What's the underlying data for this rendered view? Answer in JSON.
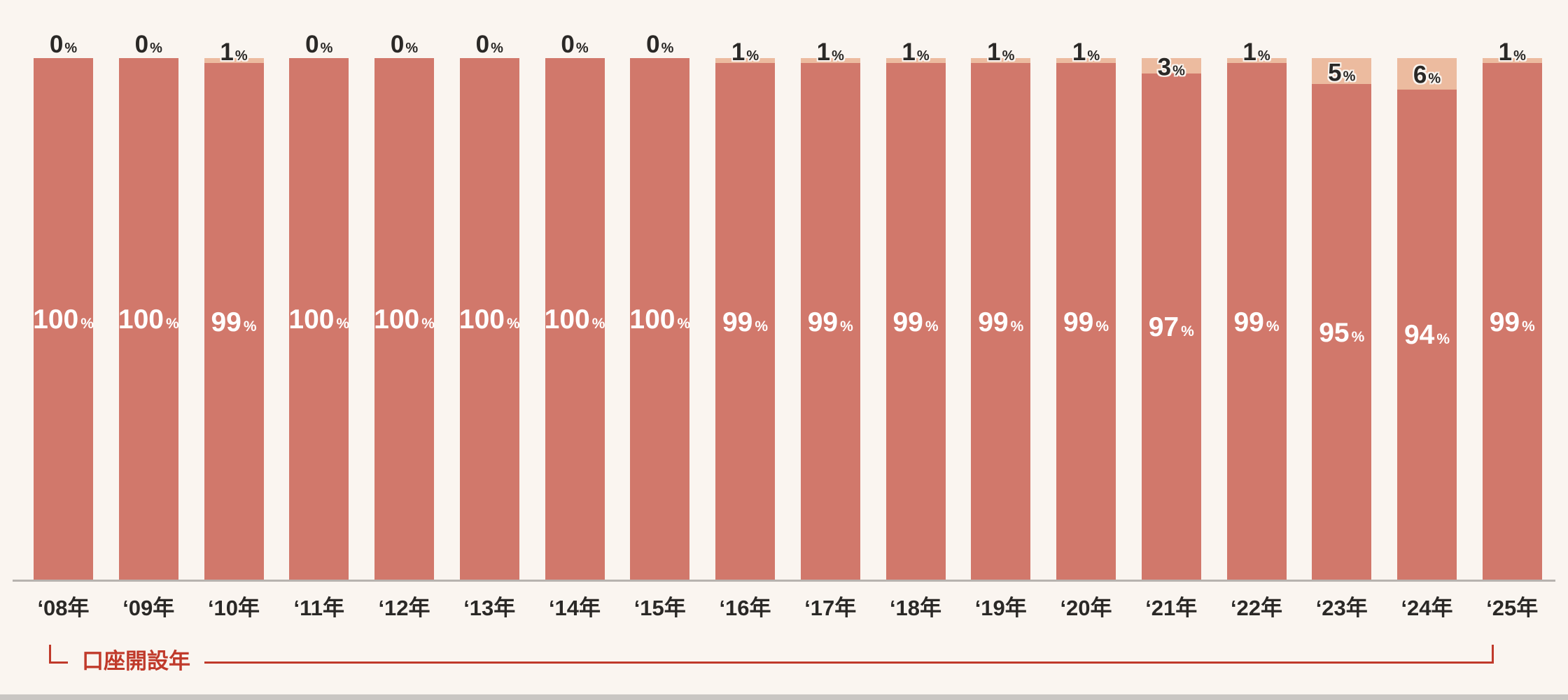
{
  "colors": {
    "background": "#faf5f0",
    "bar_bottom_segment": "#d1786b",
    "bar_top_segment": "#ecbb9f",
    "top_label_text": "#2a2826",
    "in_bar_label_text": "#ffffff",
    "x_label_text": "#2a2826",
    "axis_line": "#b7b3af",
    "annotation_red": "#c03a2b",
    "bottom_strip": "#c9c6c3"
  },
  "chart_data": {
    "type": "bar",
    "stacked": true,
    "orientation": "vertical",
    "title": "",
    "xlabel": "口座開設年",
    "ylabel": "",
    "ylim": [
      0,
      100
    ],
    "grid": false,
    "legend": "none",
    "value_suffix": "%",
    "categories": [
      "‘08年",
      "‘09年",
      "‘10年",
      "‘11年",
      "‘12年",
      "‘13年",
      "‘14年",
      "‘15年",
      "‘16年",
      "‘17年",
      "‘18年",
      "‘19年",
      "‘20年",
      "‘21年",
      "‘22年",
      "‘23年",
      "‘24年",
      "‘25年"
    ],
    "series": [
      {
        "name": "top-segment",
        "color": "#ecbb9f",
        "values": [
          0,
          0,
          1,
          0,
          0,
          0,
          0,
          0,
          1,
          1,
          1,
          1,
          1,
          3,
          1,
          5,
          6,
          1
        ]
      },
      {
        "name": "bottom-segment",
        "color": "#d1786b",
        "values": [
          100,
          100,
          99,
          100,
          100,
          100,
          100,
          100,
          99,
          99,
          99,
          99,
          99,
          97,
          99,
          95,
          94,
          99
        ]
      }
    ],
    "axis_annotation": "口座開設年"
  }
}
